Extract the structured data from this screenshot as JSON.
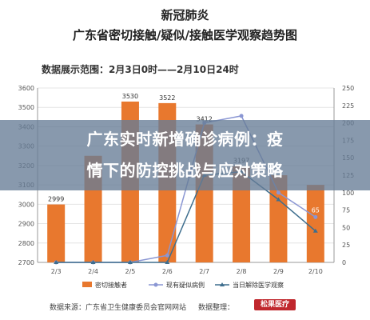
{
  "header": {
    "title_line1": "新冠肺炎",
    "title_line2": "广东省密切接触/疑似/接触医学观察趋势图",
    "date_range": "数据展示范围：2月3日0时——2月10日24时"
  },
  "overlay": {
    "line1": "广东实时新增确诊病例：疫",
    "line2": "情下的防控挑战与应对策略"
  },
  "footer": {
    "source": "数据来源：广东省卫生健康委员会官网网站",
    "editor": "数据整理：",
    "logo": "松果医疗"
  },
  "colors": {
    "bar": "#e8782e",
    "suspected": "#8a96d3",
    "released": "#3e6e8e",
    "axis": "#999999"
  },
  "chart_data": {
    "type": "bar",
    "categories": [
      "2/3",
      "2/4",
      "2/5",
      "2/6",
      "2/7",
      "2/8",
      "2/9",
      "2/10"
    ],
    "left_axis": {
      "ylim": [
        2700,
        3600
      ],
      "ticks": [
        2700,
        2800,
        2900,
        3000,
        3100,
        3200,
        3300,
        3400,
        3500,
        3600
      ]
    },
    "right_axis": {
      "ylim": [
        0,
        250
      ],
      "ticks": [
        0,
        25,
        50,
        75,
        100,
        125,
        150,
        175,
        200,
        225,
        250
      ]
    },
    "grid": true,
    "legend_position": "bottom",
    "series": [
      {
        "name": "密切接触者",
        "axis": "left",
        "kind": "bar",
        "values": [
          2999,
          3250,
          3530,
          3522,
          3412,
          3197,
          3150,
          3100
        ],
        "data_labels": [
          "2999",
          "",
          "3530",
          "3522",
          "3412",
          "3197",
          "",
          ""
        ]
      },
      {
        "name": "现有疑似病例",
        "axis": "right",
        "kind": "line",
        "values": [
          0,
          0,
          0,
          10,
          200,
          210,
          100,
          65
        ],
        "data_labels": [
          "",
          "",
          "",
          "",
          "",
          "",
          "",
          "65"
        ]
      },
      {
        "name": "当日解除医学观察",
        "axis": "right",
        "kind": "line",
        "values": [
          0,
          0,
          0,
          0,
          125,
          130,
          90,
          45
        ],
        "data_labels": [
          "",
          "",
          "",
          "",
          "",
          "",
          "",
          ""
        ]
      }
    ]
  }
}
